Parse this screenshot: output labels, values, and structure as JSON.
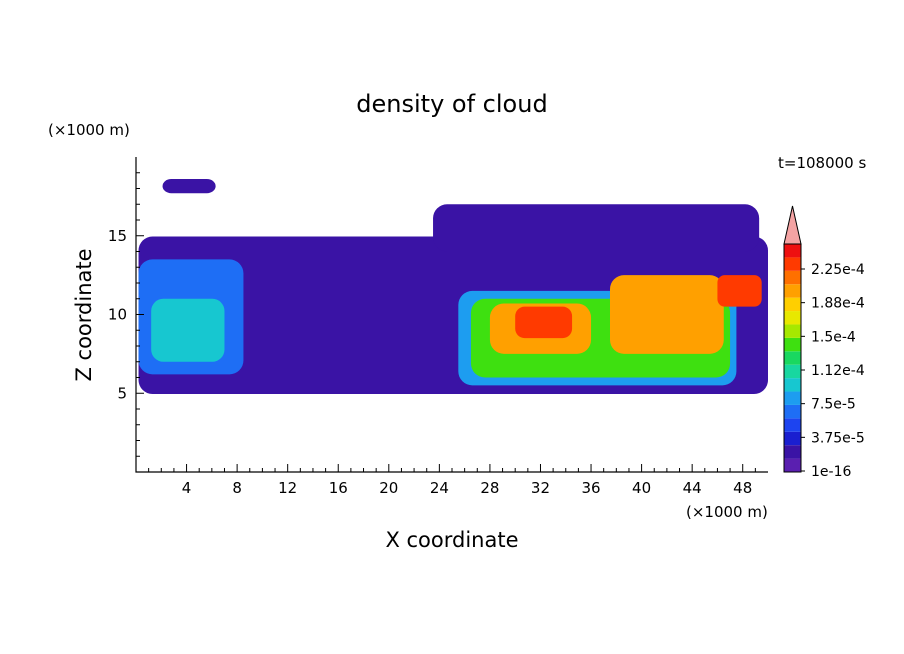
{
  "chart_data": {
    "type": "heatmap",
    "title": "density of cloud",
    "xlabel": "X coordinate",
    "ylabel": "Z coordinate",
    "x_unit": "(×1000 m)",
    "y_unit": "(×1000 m)",
    "time_label": "t=108000 s",
    "xlim": [
      0,
      50
    ],
    "ylim": [
      0,
      20
    ],
    "xticks": [
      4,
      8,
      12,
      16,
      20,
      24,
      28,
      32,
      36,
      40,
      44,
      48
    ],
    "yticks": [
      5,
      10,
      15
    ],
    "colorbar": {
      "labels": [
        "2.25e-4",
        "1.88e-4",
        "1.5e-4",
        "1.12e-4",
        "7.5e-5",
        "3.75e-5",
        "1e-16"
      ],
      "colors": [
        "#5a1fb0",
        "#3a13a5",
        "#1a1fd0",
        "#1d44f0",
        "#1e6ef5",
        "#1d9df0",
        "#17c7d0",
        "#18d7a0",
        "#19d860",
        "#3ee010",
        "#a6e800",
        "#e8e800",
        "#ffcf00",
        "#ffa000",
        "#ff7000",
        "#ff3a00",
        "#ee1010",
        "#f4a3a3"
      ]
    },
    "regions": [
      {
        "x": [
          0.2,
          50
        ],
        "z": [
          4.95,
          14.95
        ],
        "level": 1
      },
      {
        "x": [
          2.1,
          6.3
        ],
        "z": [
          17.7,
          18.6
        ],
        "level": 1
      },
      {
        "x": [
          23.5,
          49.3
        ],
        "z": [
          14.0,
          17.0
        ],
        "level": 1
      },
      {
        "x": [
          0.2,
          8.5
        ],
        "z": [
          6.2,
          13.5
        ],
        "level": 4
      },
      {
        "x": [
          1.2,
          7.0
        ],
        "z": [
          7.0,
          11.0
        ],
        "level": 6
      },
      {
        "x": [
          25.5,
          47.5
        ],
        "z": [
          5.5,
          11.5
        ],
        "level": 5
      },
      {
        "x": [
          26.5,
          47.0
        ],
        "z": [
          6.0,
          11.0
        ],
        "level": 9
      },
      {
        "x": [
          28.0,
          36.0
        ],
        "z": [
          7.5,
          10.7
        ],
        "level": 13
      },
      {
        "x": [
          37.5,
          46.5
        ],
        "z": [
          7.5,
          12.5
        ],
        "level": 13
      },
      {
        "x": [
          30.0,
          34.5
        ],
        "z": [
          8.5,
          10.5
        ],
        "level": 15
      },
      {
        "x": [
          46.0,
          49.5
        ],
        "z": [
          10.5,
          12.5
        ],
        "level": 15
      }
    ]
  }
}
